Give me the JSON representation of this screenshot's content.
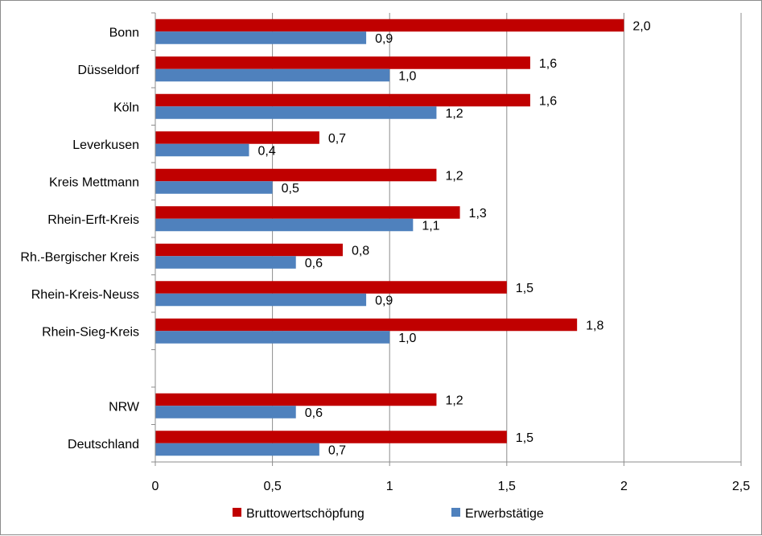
{
  "chart_data": {
    "type": "bar",
    "orientation": "horizontal",
    "categories": [
      "Bonn",
      "Düsseldorf",
      "Köln",
      "Leverkusen",
      "Kreis Mettmann",
      "Rhein-Erft-Kreis",
      "Rh.-Bergischer Kreis",
      "Rhein-Kreis-Neuss",
      "Rhein-Sieg-Kreis",
      "",
      "NRW",
      "Deutschland"
    ],
    "series": [
      {
        "name": "Bruttowertschöpfung",
        "color": "#c00000",
        "values": [
          2.0,
          1.6,
          1.6,
          0.7,
          1.2,
          1.3,
          0.8,
          1.5,
          1.8,
          null,
          1.2,
          1.5
        ],
        "labels": [
          "2,0",
          "1,6",
          "1,6",
          "0,7",
          "1,2",
          "1,3",
          "0,8",
          "1,5",
          "1,8",
          "",
          "1,2",
          "1,5"
        ]
      },
      {
        "name": "Erwerbstätige",
        "color": "#4f81bd",
        "values": [
          0.9,
          1.0,
          1.2,
          0.4,
          0.5,
          1.1,
          0.6,
          0.9,
          1.0,
          null,
          0.6,
          0.7
        ],
        "labels": [
          "0,9",
          "1,0",
          "1,2",
          "0,4",
          "0,5",
          "1,1",
          "0,6",
          "0,9",
          "1,0",
          "",
          "0,6",
          "0,7"
        ]
      }
    ],
    "xlim": [
      0,
      2.5
    ],
    "xticks": [
      0,
      0.5,
      1,
      1.5,
      2,
      2.5
    ],
    "xtick_labels": [
      "0",
      "0,5",
      "1",
      "1,5",
      "2",
      "2,5"
    ],
    "grid": "vertical",
    "legend": "bottom-center"
  }
}
